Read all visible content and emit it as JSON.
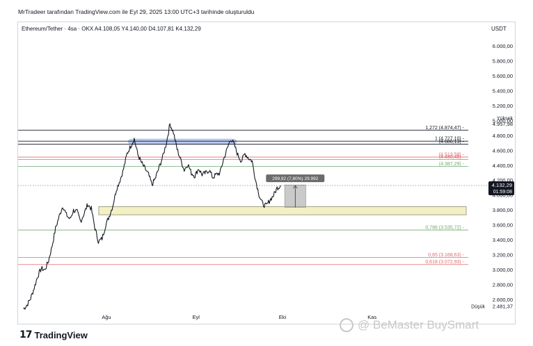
{
  "attribution": "MrTradeer tarafından TradingView.com ile Eyl 29, 2025 13:00 UTC+3 tarihinde oluşturuldu",
  "symbol_line": "Ethereum/Tether · 4sa · OKX  A4.108,05  Y4.140,00  D4.107,81  K4.132,29",
  "currency": "USDT",
  "footer_logo_text": "TradingView",
  "watermark_text": "@ BeMaster BuySmart",
  "colors": {
    "candle": "#131722",
    "fib_green": "#6fa86f",
    "fib_red": "#e06b6b",
    "zone_blue": "#7d9be0",
    "zone_yellow": "#f3eec0",
    "price_tag": "#131722"
  },
  "chart_data": {
    "type": "line",
    "ylim": [
      2400,
      6200
    ],
    "y_ticks": [
      "2.600,00",
      "2.800,00",
      "3.000,00",
      "3.200,00",
      "3.400,00",
      "3.600,00",
      "3.800,00",
      "4.000,00",
      "4.200,00",
      "4.400,00",
      "4.600,00",
      "4.800,00",
      "5.000,00",
      "5.200,00",
      "5.400,00",
      "5.600,00",
      "5.800,00",
      "6.000,00"
    ],
    "y_tick_values": [
      2600,
      2800,
      3000,
      3200,
      3400,
      3600,
      3800,
      4000,
      4200,
      4400,
      4600,
      4800,
      5000,
      5200,
      5400,
      5600,
      5800,
      6000
    ],
    "x_ticks": [
      {
        "label": "Ağu",
        "t": 0.197
      },
      {
        "label": "Eyl",
        "t": 0.397
      },
      {
        "label": "Eki",
        "t": 0.59
      },
      {
        "label": "Kas",
        "t": 0.79
      }
    ],
    "series": [
      {
        "values": [
          2480,
          2530,
          2620,
          2760,
          2920,
          3020,
          3000,
          3120,
          3320,
          3560,
          3720,
          3860,
          3740,
          3680,
          3800,
          3780,
          3650,
          3760,
          3880,
          3820,
          3560,
          3380,
          3420,
          3600,
          3720,
          3860,
          4080,
          4200,
          4350,
          4560,
          4660,
          4760,
          4550,
          4440,
          4360,
          4280,
          4140,
          4240,
          4380,
          4520,
          4700,
          4960,
          4840,
          4620,
          4480,
          4340,
          4420,
          4300,
          4260,
          4360,
          4280,
          4300,
          4340,
          4240,
          4280,
          4300,
          4480,
          4620,
          4760,
          4680,
          4540,
          4460,
          4560,
          4500,
          4460,
          4200,
          4000,
          3880,
          3860,
          3940,
          4000,
          4100,
          4132
        ],
        "x_start_t": 0.012,
        "x_end_t": 0.586
      }
    ],
    "levels": [
      {
        "label": "1,272 (4.874,47)",
        "value": 4874.47,
        "color": "#131722",
        "right_text": "Yüksek 4.957,98"
      },
      {
        "label": "1 (4.727,10)",
        "value": 4727.1,
        "color": "#131722",
        "right_text": ""
      },
      {
        "label": "(4.686,13)",
        "value": 4686.13,
        "color": "#131722",
        "right_text": ""
      },
      {
        "label": "(4.513,58)",
        "value": 4513.58,
        "color": "#e06b6b",
        "right_text": ""
      },
      {
        "label": "(4.480,49)",
        "value": 4480.49,
        "color": "#e06b6b",
        "right_text": ""
      },
      {
        "label": "(4.387,29)",
        "value": 4387.29,
        "color": "#6fa86f",
        "right_text": ""
      },
      {
        "label": "0,786 (3.535,72)",
        "value": 3535.72,
        "color": "#6fa86f",
        "right_text": ""
      },
      {
        "label": "0,65 (3.168,63)",
        "value": 3168.63,
        "color": "#e06b6b",
        "right_text": ""
      },
      {
        "label": "0,618 (3.072,93)",
        "value": 3072.93,
        "color": "#e06b6b",
        "right_text": ""
      }
    ],
    "zones": [
      {
        "name": "resistance",
        "y_from": 4680,
        "y_to": 4760,
        "t_from": 0.245,
        "t_to": 0.488,
        "color": "#7d9be0"
      },
      {
        "name": "support",
        "y_from": 3740,
        "y_to": 3850,
        "t_from": 0.18,
        "t_to": 1.0,
        "color": "#f3eec0"
      }
    ],
    "measure_box": {
      "label": "299,92 (7,80%) 29.992",
      "y_from": 3840,
      "y_to": 4140,
      "t_from": 0.595,
      "t_to": 0.642
    },
    "current_price": {
      "value": 4132.29,
      "label": "4.132,29",
      "sub": "01:59:08"
    },
    "low_label": {
      "word": "Düşük",
      "value_text": "2.481,37",
      "value": 2481.37
    },
    "high_label": {
      "word": "Yüksek",
      "value_text": "4.957,98",
      "value": 4957.98
    }
  }
}
